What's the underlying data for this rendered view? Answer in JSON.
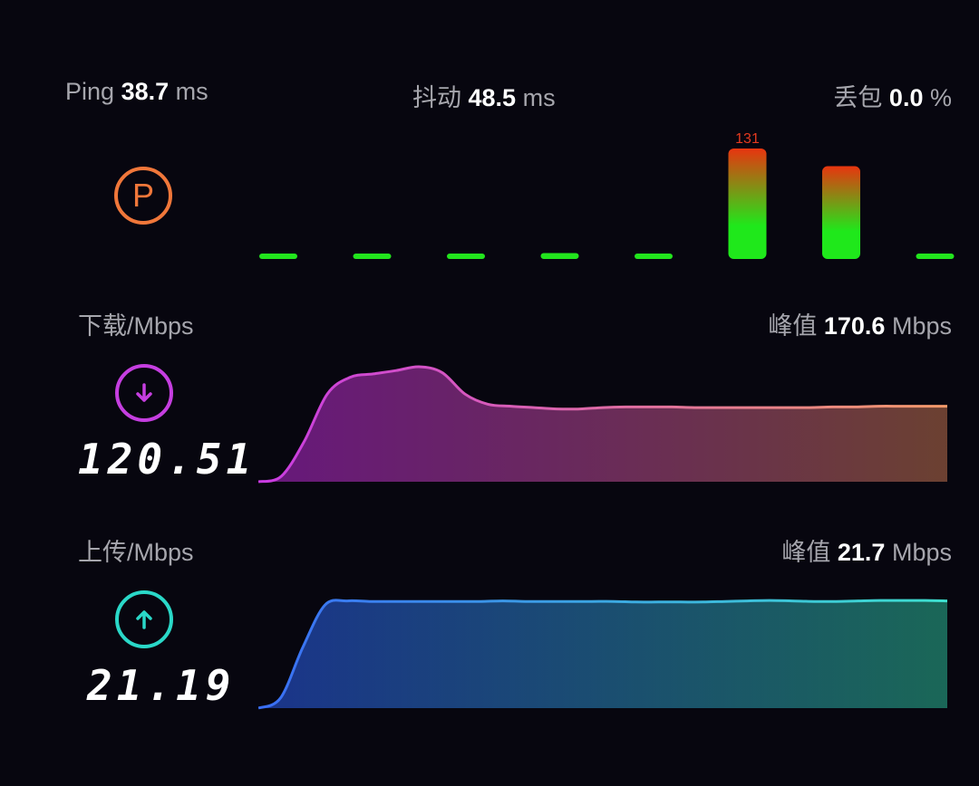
{
  "stats": {
    "ping": {
      "label": "Ping",
      "value": "38.7",
      "unit": "ms"
    },
    "jitter": {
      "label": "抖动",
      "value": "48.5",
      "unit": "ms"
    },
    "loss": {
      "label": "丢包",
      "value": "0.0",
      "unit": "%"
    }
  },
  "ping_icon": {
    "letter": "P",
    "icon": "ping-p-icon",
    "color": "#f0773a"
  },
  "download": {
    "label": "下载/Mbps",
    "peak_label": "峰值",
    "peak_value": "170.6",
    "peak_unit": "Mbps",
    "value": "120.51",
    "icon": "arrow-down-icon",
    "color": "#c53ee0"
  },
  "upload": {
    "label": "上传/Mbps",
    "peak_label": "峰值",
    "peak_value": "21.7",
    "peak_unit": "Mbps",
    "value": "21.19",
    "icon": "arrow-up-icon",
    "color": "#2ad8c8"
  },
  "chart_data": [
    {
      "type": "bar",
      "name": "ping-samples",
      "values": [
        4,
        3,
        5,
        7,
        4,
        131,
        110,
        2
      ],
      "data_labels": [
        {
          "index": 5,
          "text": "131"
        }
      ],
      "ylim": [
        0,
        131
      ]
    },
    {
      "type": "area",
      "name": "download-speed",
      "values": [
        0,
        8,
        60,
        130,
        155,
        160,
        165,
        170.6,
        162,
        130,
        115,
        112,
        110,
        108,
        108,
        110,
        111,
        111,
        111,
        110,
        110,
        110,
        110,
        110,
        110,
        111,
        111,
        112,
        112,
        112,
        112
      ],
      "ylim": [
        0,
        180
      ]
    },
    {
      "type": "area",
      "name": "upload-speed",
      "values": [
        0,
        2,
        12,
        20.4,
        21.2,
        21.1,
        21.1,
        21.1,
        21.1,
        21.1,
        21.1,
        21.2,
        21.1,
        21.1,
        21.1,
        21.1,
        21.1,
        21.0,
        21.0,
        21.0,
        21.0,
        21.1,
        21.2,
        21.3,
        21.2,
        21.1,
        21.1,
        21.2,
        21.3,
        21.3,
        21.3,
        21.2
      ],
      "ylim": [
        0,
        24
      ]
    }
  ]
}
